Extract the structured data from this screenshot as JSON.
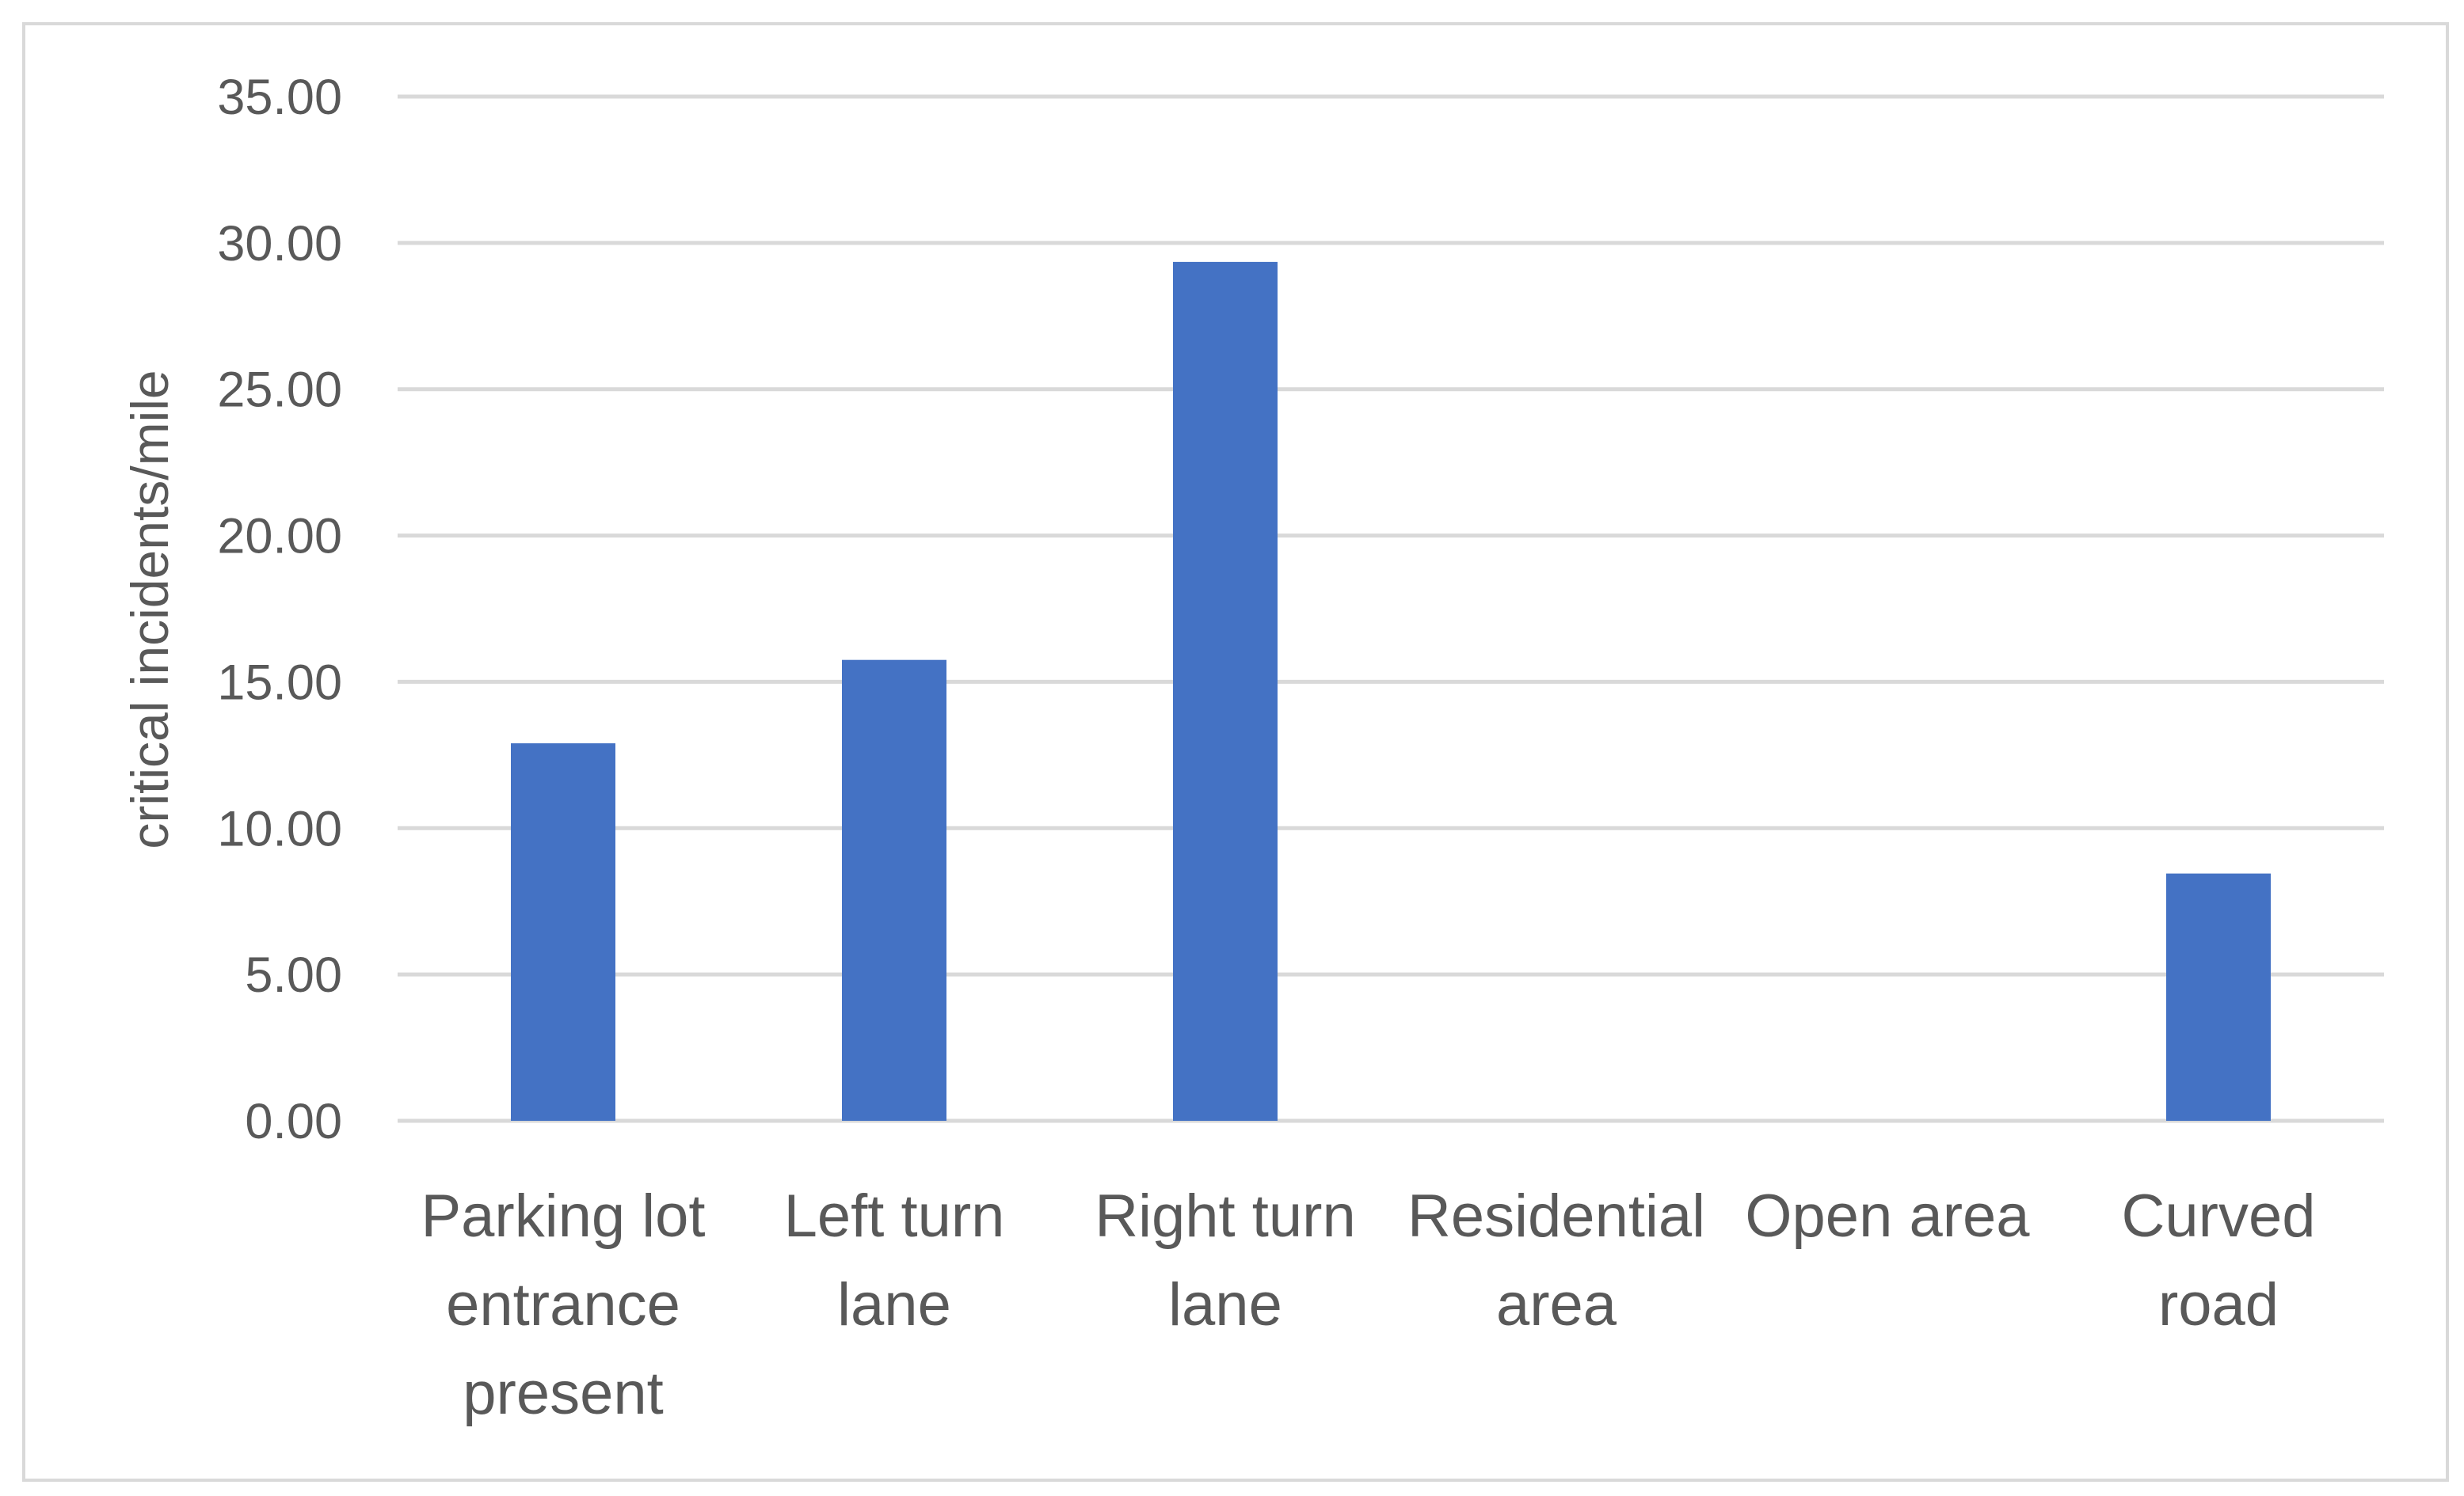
{
  "chart_data": {
    "type": "bar",
    "title": "",
    "xlabel": "",
    "ylabel": "critical incidents/mile",
    "categories": [
      [
        "Parking lot",
        "entrance",
        "present"
      ],
      [
        "Left turn",
        "lane"
      ],
      [
        "Right turn",
        "lane"
      ],
      [
        "Residential",
        "area"
      ],
      [
        "Open area"
      ],
      [
        "Curved",
        "road"
      ]
    ],
    "values": [
      12.9,
      15.75,
      29.35,
      0,
      0,
      8.45
    ],
    "ylim": [
      0,
      35
    ],
    "yticks": [
      "0.00",
      "5.00",
      "10.00",
      "15.00",
      "20.00",
      "25.00",
      "30.00",
      "35.00"
    ],
    "grid": true,
    "legend": "none",
    "colors": {
      "bar": "#4472C4",
      "grid": "#D9D9D9",
      "text": "#595959",
      "frame": "#D9D9D9"
    }
  }
}
